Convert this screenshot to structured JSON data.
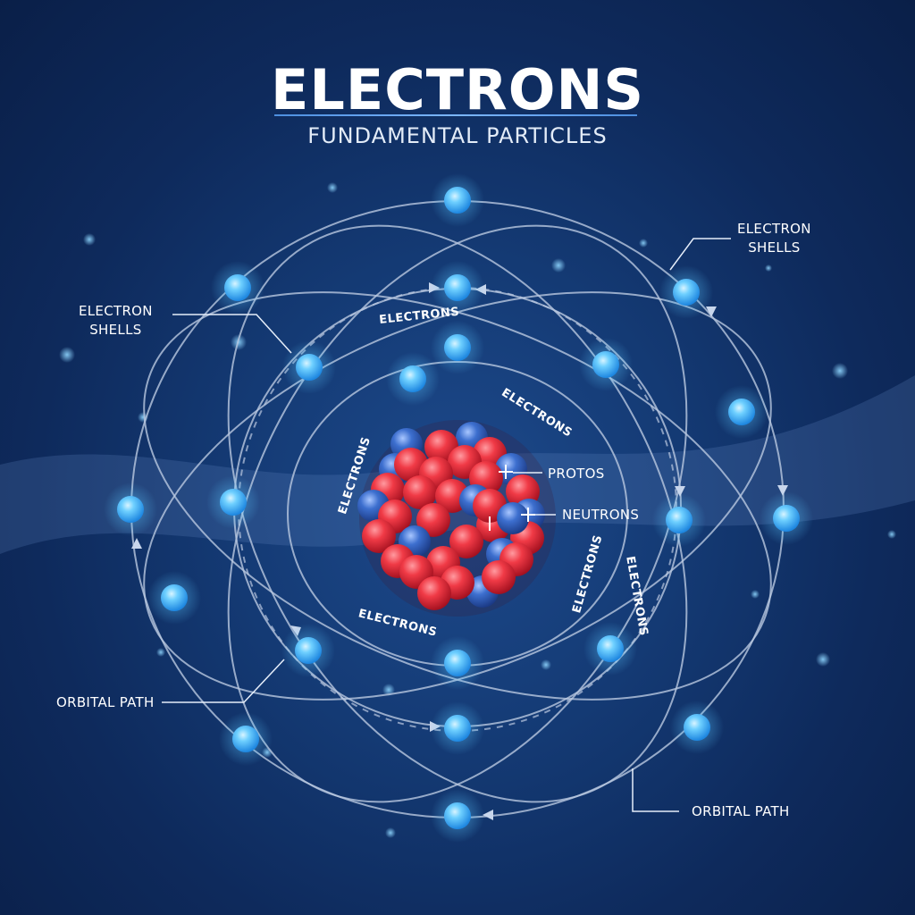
{
  "title": "ELECTRONS",
  "subtitle": "FUNDAMENTAL PARTICLES",
  "callouts": {
    "shells_left_line1": "ELECTRON",
    "shells_left_line2": "SHELLS",
    "shells_right_line1": "ELECTRON",
    "shells_right_line2": "SHELLS",
    "orbital_left": "ORBITAL PATH",
    "orbital_right": "ORBITAL PATH",
    "protons": "PROTOS",
    "neutrons": "NEUTRONS"
  },
  "orbit_labels": {
    "top": "ELECTRONS",
    "upper_right": "ELECTRONS",
    "left": "ELECTRONS",
    "bottom": "ELECTRONS",
    "right_inner": "ELECTRONS",
    "right_outer": "ELECTRONS"
  },
  "colors": {
    "background": "#0e2a5c",
    "electron": "#3fb4ff",
    "proton": "#e8283a",
    "neutron": "#2f5fb8",
    "orbit": "#b9c8e0"
  }
}
